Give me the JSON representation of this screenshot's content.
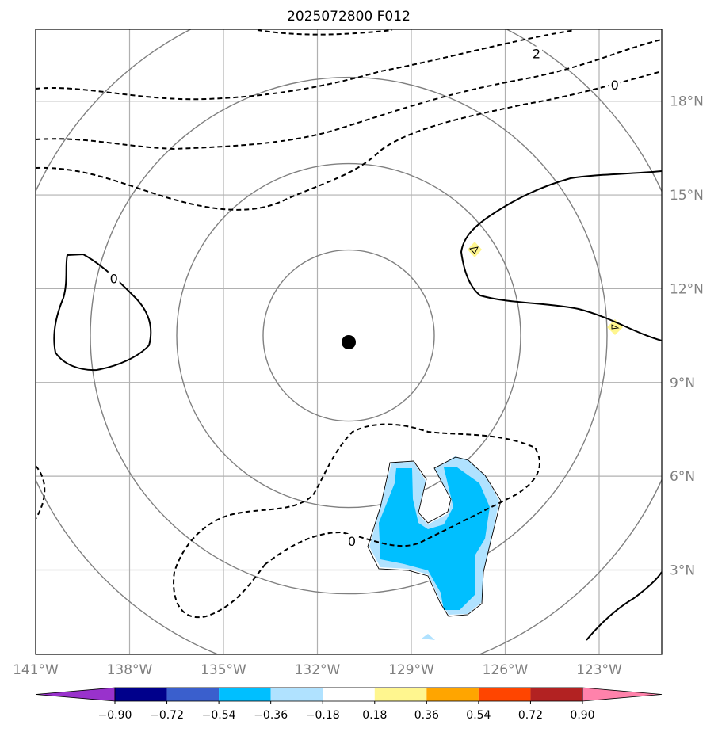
{
  "title": "2025072800 F012",
  "map": {
    "lon_range": [
      -141,
      -121
    ],
    "lat_range": [
      0.3,
      20.3
    ],
    "gridlines": true,
    "grid_color": "#b0b0b0",
    "lat_ticks": [
      {
        "value": 3,
        "label": "3°N"
      },
      {
        "value": 6,
        "label": "6°N"
      },
      {
        "value": 9,
        "label": "9°N"
      },
      {
        "value": 12,
        "label": "12°N"
      },
      {
        "value": 15,
        "label": "15°N"
      },
      {
        "value": 18,
        "label": "18°N"
      }
    ],
    "lon_ticks": [
      {
        "value": -141,
        "label": "141°W"
      },
      {
        "value": -138,
        "label": "138°W"
      },
      {
        "value": -135,
        "label": "135°W"
      },
      {
        "value": -132,
        "label": "132°W"
      },
      {
        "value": -129,
        "label": "129°W"
      },
      {
        "value": -126,
        "label": "126°W"
      },
      {
        "value": -123,
        "label": "123°W"
      }
    ],
    "center": {
      "lon": -131.0,
      "lat": 10.5
    },
    "range_ring_color": "#808080",
    "contour_labels": [
      {
        "text": "0",
        "lon": -138.5,
        "lat": 12.3
      },
      {
        "text": "0",
        "lon": -130.9,
        "lat": 3.9
      },
      {
        "text": "0",
        "lon": -122.5,
        "lat": 18.5
      },
      {
        "text": "2",
        "lon": -125.0,
        "lat": 19.5
      }
    ]
  },
  "colorbar": {
    "ticks": [
      "−0.90",
      "−0.72",
      "−0.54",
      "−0.36",
      "−0.18",
      "0.18",
      "0.36",
      "0.54",
      "0.72",
      "0.90"
    ],
    "colors": [
      "#9932cc",
      "#00008b",
      "#3a5fcd",
      "#00bfff",
      "#b0e2ff",
      "#ffffff",
      "#fff68f",
      "#ffa500",
      "#ff4500",
      "#b22222",
      "#ff82ab"
    ]
  }
}
